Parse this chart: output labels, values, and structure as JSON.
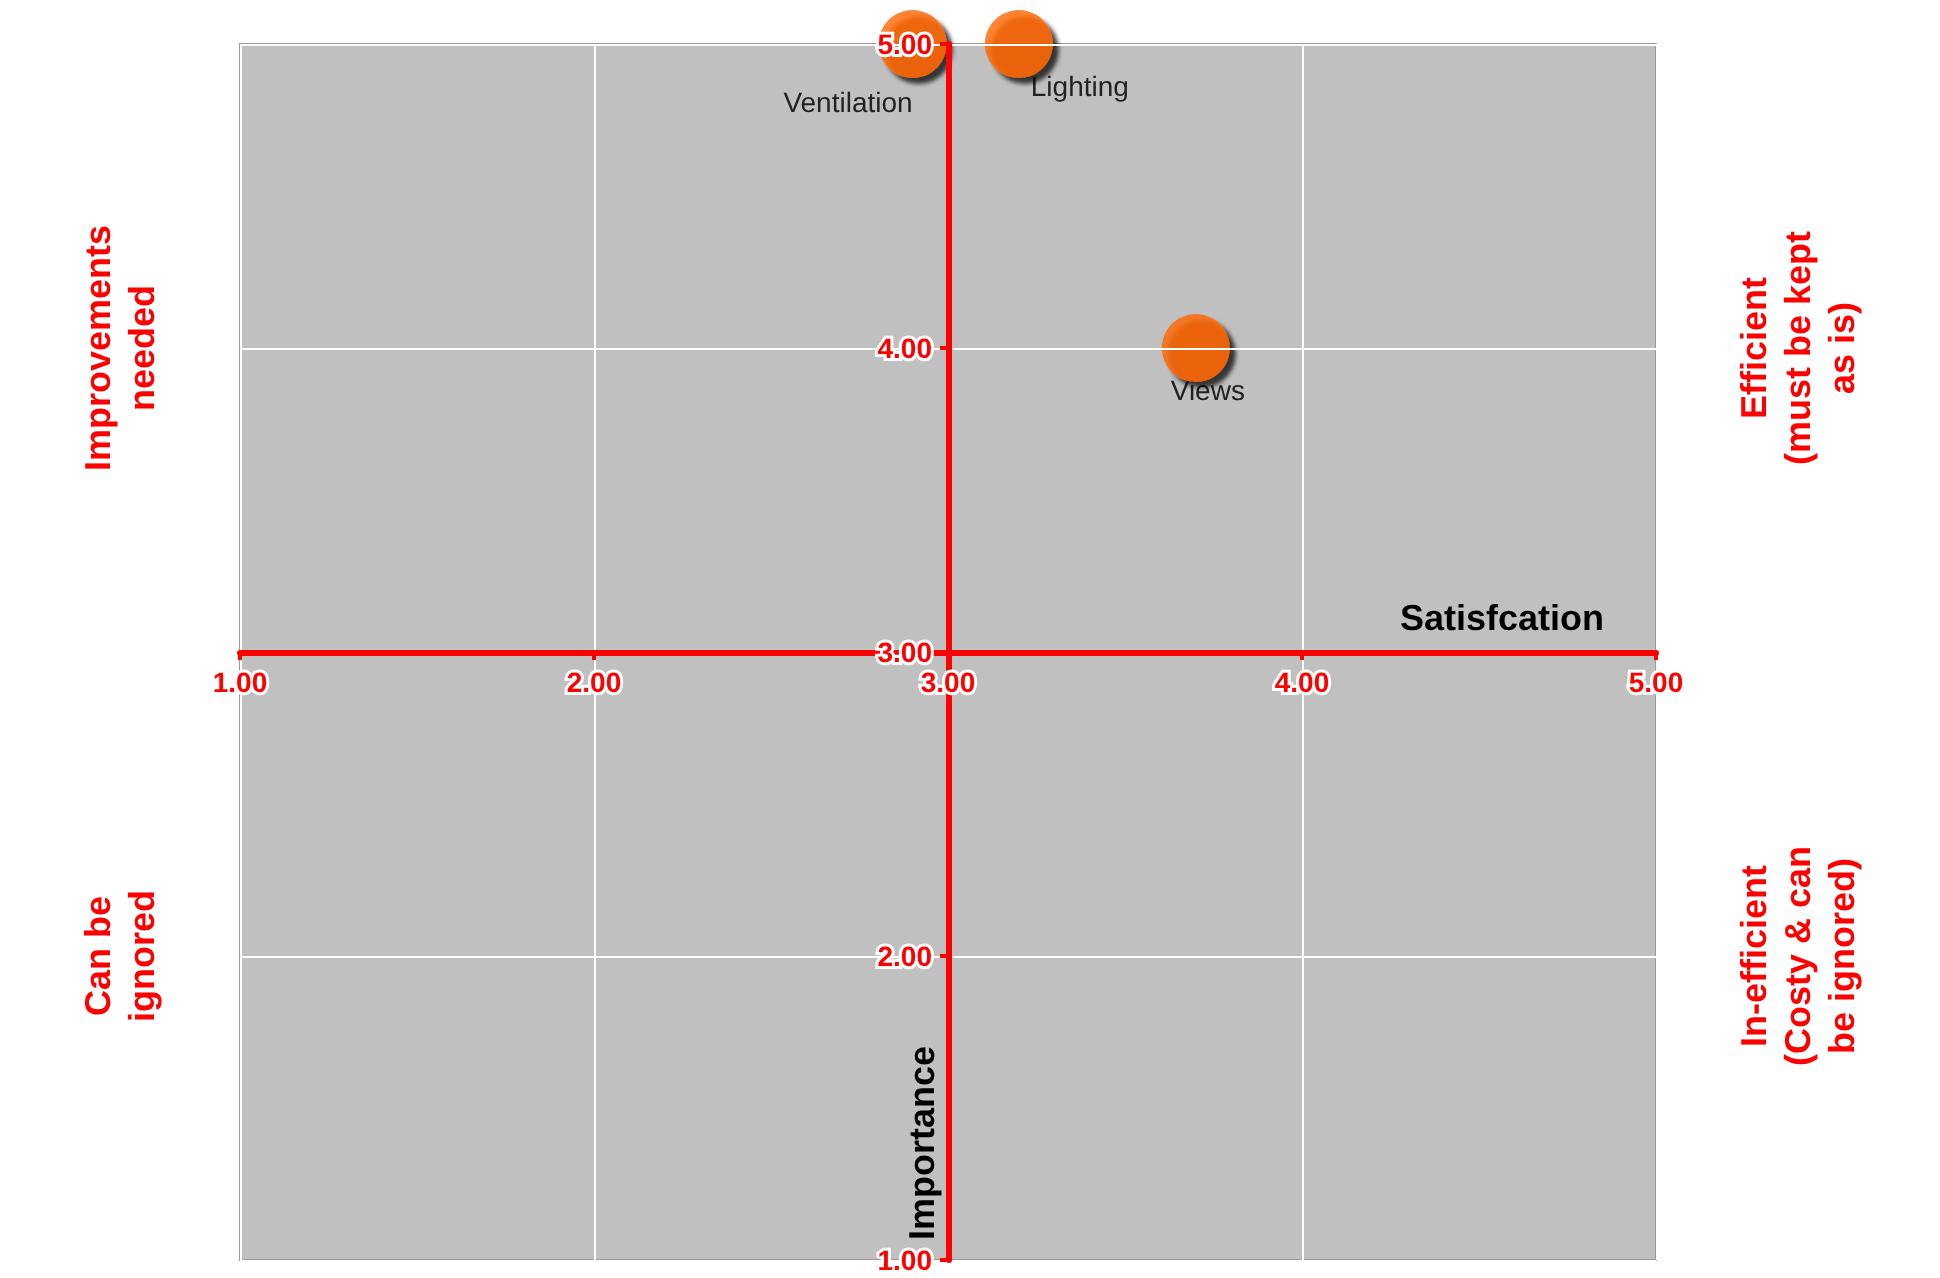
{
  "chart_data": {
    "type": "scatter",
    "xlabel": "Satisfcation",
    "ylabel": "Importance",
    "series": [
      {
        "color": "#ff6600",
        "x": [
          2.9,
          3.2,
          3.7
        ],
        "values": [
          5.0,
          5.0,
          4.0
        ]
      }
    ],
    "xlim": [
      1,
      5
    ],
    "ylim": [
      1,
      5
    ],
    "xticks": [
      {
        "value": 1,
        "label": "1.00"
      },
      {
        "value": 2,
        "label": "2.00"
      },
      {
        "value": 3,
        "label": "3.00"
      },
      {
        "value": 4,
        "label": "4.00"
      },
      {
        "value": 5,
        "label": "5.00"
      }
    ],
    "yticks": [
      {
        "value": 1,
        "label": "1.00"
      },
      {
        "value": 2,
        "label": "2.00"
      },
      {
        "value": 3,
        "label": "3.00"
      },
      {
        "value": 4,
        "label": "4.00"
      },
      {
        "value": 5,
        "label": "5.00"
      }
    ],
    "grid": true,
    "marker": "circle",
    "annotations": [
      {
        "text": "Ventilation",
        "x": 2.9,
        "y": 5.0
      },
      {
        "text": "Lighting",
        "x": 3.2,
        "y": 5.0
      },
      {
        "text": "Views",
        "x": 3.7,
        "y": 4.0
      },
      "Improvements needed",
      "Efficient (must be kept as is)",
      "Can be ignored",
      "In-efficient (Costy & can be ignored)"
    ]
  }
}
